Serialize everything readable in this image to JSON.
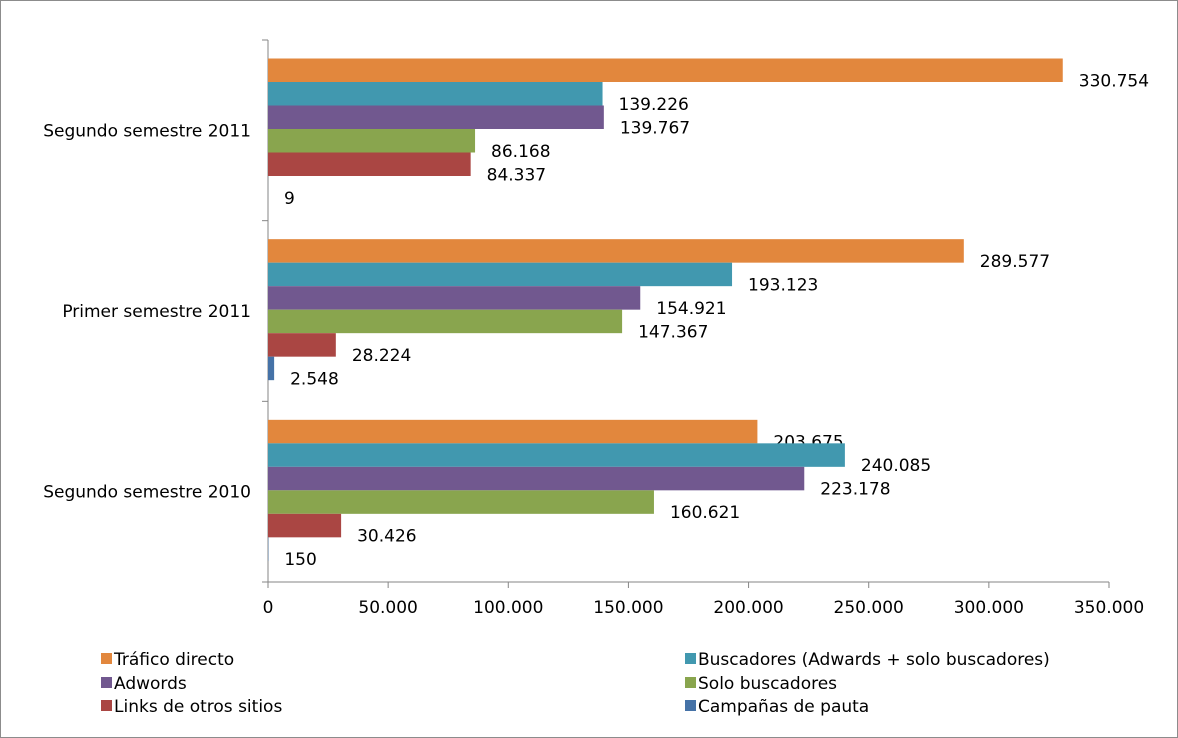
{
  "chart_data": {
    "type": "bar",
    "orientation": "horizontal",
    "categories": [
      "Segundo semestre 2011",
      "Primer semestre 2011",
      "Segundo semestre 2010"
    ],
    "series": [
      {
        "name": "Tráfico directo",
        "color": "#e2873d",
        "values": [
          330754,
          289577,
          203675
        ],
        "labels": [
          "330.754",
          "289.577",
          "203.675"
        ]
      },
      {
        "name": "Buscadores (Adwards + solo buscadores)",
        "color": "#4198af",
        "values": [
          139226,
          193123,
          240085
        ],
        "labels": [
          "139.226",
          "193.123",
          "240.085"
        ]
      },
      {
        "name": "Adwords",
        "color": "#71588f",
        "values": [
          139767,
          154921,
          223178
        ],
        "labels": [
          "139.767",
          "154.921",
          "223.178"
        ]
      },
      {
        "name": "Solo buscadores",
        "color": "#89a54e",
        "values": [
          86168,
          147367,
          160621
        ],
        "labels": [
          "86.168",
          "147.367",
          "160.621"
        ]
      },
      {
        "name": "Links de otros sitios",
        "color": "#aa4643",
        "values": [
          84337,
          28224,
          30426
        ],
        "labels": [
          "84.337",
          "28.224",
          "30.426"
        ]
      },
      {
        "name": "Campañas de pauta",
        "color": "#4572a7",
        "values": [
          9,
          2548,
          150
        ],
        "labels": [
          "9",
          "2.548",
          "150"
        ]
      }
    ],
    "xlim": [
      0,
      350000
    ],
    "xticks": [
      0,
      50000,
      100000,
      150000,
      200000,
      250000,
      300000,
      350000
    ],
    "xtick_labels": [
      "0",
      "50.000",
      "100.000",
      "150.000",
      "200.000",
      "250.000",
      "300.000",
      "350.000"
    ],
    "grid": false,
    "legend_position": "bottom"
  }
}
